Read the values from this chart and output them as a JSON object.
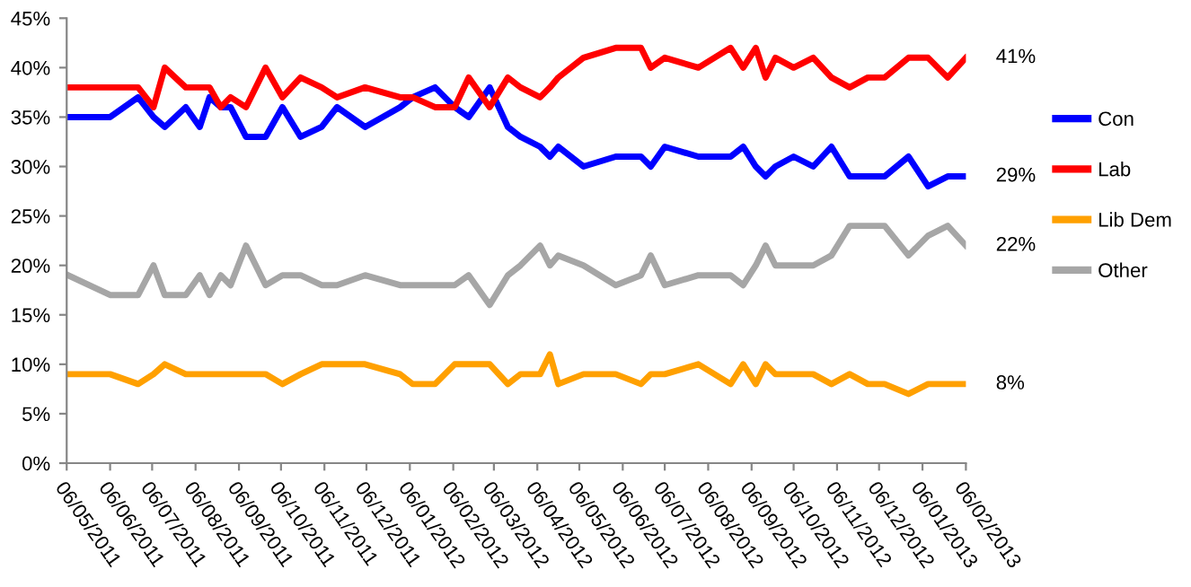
{
  "chart_data": {
    "type": "line",
    "x": [
      "2011-05-07",
      "2011-06-06",
      "2011-06-26",
      "2011-07-07",
      "2011-07-15",
      "2011-07-30",
      "2011-08-09",
      "2011-08-16",
      "2011-08-24",
      "2011-08-31",
      "2011-09-11",
      "2011-09-25",
      "2011-10-07",
      "2011-10-20",
      "2011-11-04",
      "2011-11-15",
      "2011-12-05",
      "2011-12-30",
      "2012-01-08",
      "2012-01-24",
      "2012-02-07",
      "2012-02-17",
      "2012-03-03",
      "2012-03-16",
      "2012-03-25",
      "2012-04-08",
      "2012-04-15",
      "2012-04-21",
      "2012-05-09",
      "2012-06-01",
      "2012-06-19",
      "2012-06-26",
      "2012-07-06",
      "2012-07-30",
      "2012-08-22",
      "2012-08-31",
      "2012-09-09",
      "2012-09-16",
      "2012-09-23",
      "2012-10-06",
      "2012-10-20",
      "2012-11-02",
      "2012-11-15",
      "2012-11-28",
      "2012-12-10",
      "2012-12-27",
      "2013-01-10",
      "2013-01-24",
      "2013-02-06"
    ],
    "series": [
      {
        "name": "Con",
        "color": "#0000ff",
        "values": [
          35,
          35,
          37,
          35,
          34,
          36,
          34,
          37,
          36,
          36,
          33,
          33,
          36,
          33,
          34,
          36,
          34,
          36,
          37,
          38,
          36,
          35,
          38,
          34,
          33,
          32,
          31,
          32,
          30,
          31,
          31,
          30,
          32,
          31,
          31,
          32,
          30,
          29,
          30,
          31,
          30,
          32,
          29,
          29,
          29,
          31,
          28,
          29,
          29
        ]
      },
      {
        "name": "Lab",
        "color": "#ff0000",
        "values": [
          38,
          38,
          38,
          36,
          40,
          38,
          38,
          38,
          36,
          37,
          36,
          40,
          37,
          39,
          38,
          37,
          38,
          37,
          37,
          36,
          36,
          39,
          36,
          39,
          38,
          37,
          38,
          39,
          41,
          42,
          42,
          40,
          41,
          40,
          42,
          40,
          42,
          39,
          41,
          40,
          41,
          39,
          38,
          39,
          39,
          41,
          41,
          39,
          41
        ]
      },
      {
        "name": "Lib Dem",
        "color": "#ffa000",
        "values": [
          9,
          9,
          8,
          9,
          10,
          9,
          9,
          9,
          9,
          9,
          9,
          9,
          8,
          9,
          10,
          10,
          10,
          9,
          8,
          8,
          10,
          10,
          10,
          8,
          9,
          9,
          11,
          8,
          9,
          9,
          8,
          9,
          9,
          10,
          8,
          10,
          8,
          10,
          9,
          9,
          9,
          8,
          9,
          8,
          8,
          7,
          8,
          8,
          8
        ]
      },
      {
        "name": "Other",
        "color": "#a6a6a6",
        "values": [
          19,
          17,
          17,
          20,
          17,
          17,
          19,
          17,
          19,
          18,
          22,
          18,
          19,
          19,
          18,
          18,
          19,
          18,
          18,
          18,
          18,
          19,
          16,
          19,
          20,
          22,
          20,
          21,
          20,
          18,
          19,
          21,
          18,
          19,
          19,
          18,
          20,
          22,
          20,
          20,
          20,
          21,
          24,
          24,
          24,
          21,
          23,
          24,
          22
        ]
      }
    ],
    "xlim": [
      "2011-05-06",
      "2013-02-06"
    ],
    "xticks": [
      {
        "value": "2011-05-06",
        "label": "06/05/2011"
      },
      {
        "value": "2011-06-06",
        "label": "06/06/2011"
      },
      {
        "value": "2011-07-06",
        "label": "06/07/2011"
      },
      {
        "value": "2011-08-06",
        "label": "06/08/2011"
      },
      {
        "value": "2011-09-06",
        "label": "06/09/2011"
      },
      {
        "value": "2011-10-06",
        "label": "06/10/2011"
      },
      {
        "value": "2011-11-06",
        "label": "06/11/2011"
      },
      {
        "value": "2011-12-06",
        "label": "06/12/2011"
      },
      {
        "value": "2012-01-06",
        "label": "06/01/2012"
      },
      {
        "value": "2012-02-06",
        "label": "06/02/2012"
      },
      {
        "value": "2012-03-06",
        "label": "06/03/2012"
      },
      {
        "value": "2012-04-06",
        "label": "06/04/2012"
      },
      {
        "value": "2012-05-06",
        "label": "06/05/2012"
      },
      {
        "value": "2012-06-06",
        "label": "06/06/2012"
      },
      {
        "value": "2012-07-06",
        "label": "06/07/2012"
      },
      {
        "value": "2012-08-06",
        "label": "06/08/2012"
      },
      {
        "value": "2012-09-06",
        "label": "06/09/2012"
      },
      {
        "value": "2012-10-06",
        "label": "06/10/2012"
      },
      {
        "value": "2012-11-06",
        "label": "06/11/2012"
      },
      {
        "value": "2012-12-06",
        "label": "06/12/2012"
      },
      {
        "value": "2013-01-06",
        "label": "06/01/2013"
      },
      {
        "value": "2013-02-06",
        "label": "06/02/2013"
      }
    ],
    "ylim": [
      0,
      45
    ],
    "yticks": [
      {
        "value": 0,
        "label": "0%"
      },
      {
        "value": 5,
        "label": "5%"
      },
      {
        "value": 10,
        "label": "10%"
      },
      {
        "value": 15,
        "label": "15%"
      },
      {
        "value": 20,
        "label": "20%"
      },
      {
        "value": 25,
        "label": "25%"
      },
      {
        "value": 30,
        "label": "30%"
      },
      {
        "value": 35,
        "label": "35%"
      },
      {
        "value": 40,
        "label": "40%"
      },
      {
        "value": 45,
        "label": "45%"
      }
    ],
    "annotations": [
      {
        "text": "41%",
        "x": "2013-02-06",
        "y": 41
      },
      {
        "text": "29%",
        "x": "2013-02-06",
        "y": 29
      },
      {
        "text": "22%",
        "x": "2013-02-06",
        "y": 22
      },
      {
        "text": "8%",
        "x": "2013-02-06",
        "y": 8
      }
    ],
    "grid": false,
    "legend": "right",
    "marker": "none",
    "line_style": "solid"
  }
}
